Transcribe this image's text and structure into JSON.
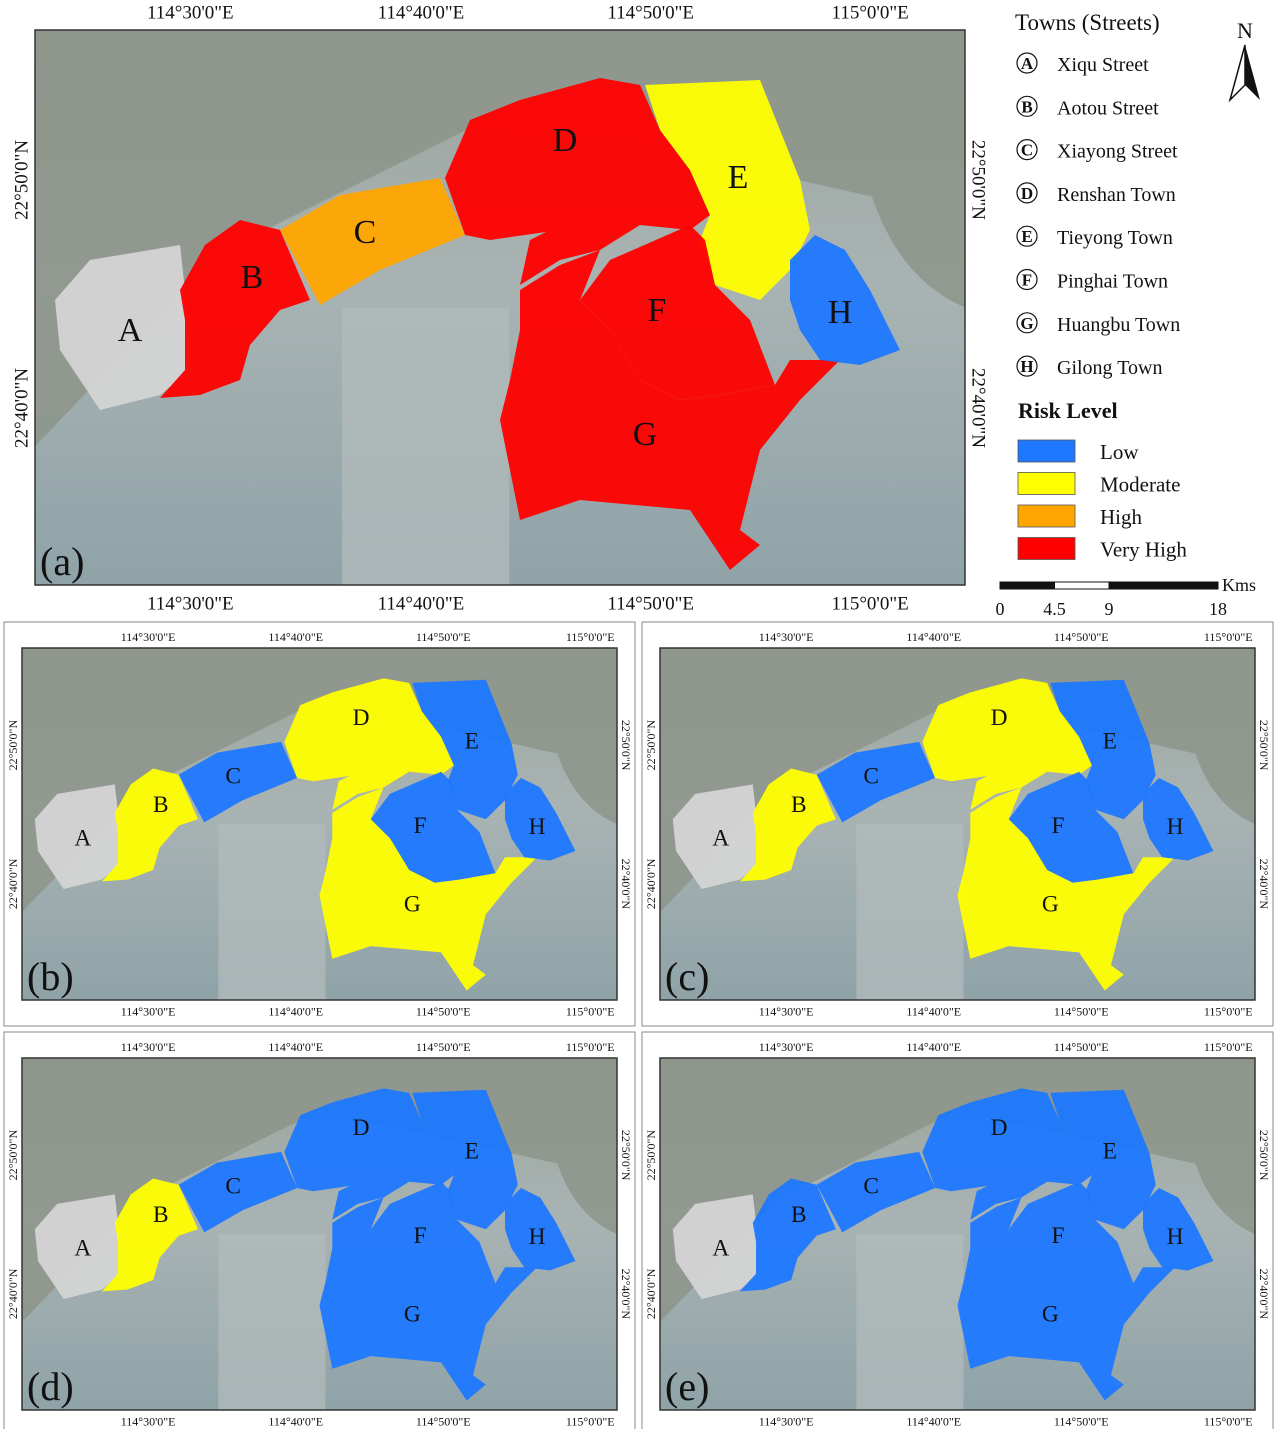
{
  "panels": [
    {
      "label": "(a)",
      "xlabels": [
        "114°30'0\"E",
        "114°40'0\"E",
        "114°50'0\"E",
        "115°0'0\"E"
      ],
      "ylabels": [
        "22°50'0\"N",
        "22°40'0\"N"
      ],
      "regions": [
        {
          "label": "A",
          "color": "#d4d4d4"
        },
        {
          "label": "B",
          "color": "#ff0000"
        },
        {
          "label": "C",
          "color": "#ffa500"
        },
        {
          "label": "D",
          "color": "#ff0000"
        },
        {
          "label": "E",
          "color": "#ffff00"
        },
        {
          "label": "F",
          "color": "#ff0000"
        },
        {
          "label": "G",
          "color": "#ff0000"
        },
        {
          "label": "H",
          "color": "#1e78ff"
        }
      ]
    },
    {
      "label": "(b)",
      "xlabels": [
        "114°30'0\"E",
        "114°40'0\"E",
        "114°50'0\"E",
        "115°0'0\"E"
      ],
      "ylabels": [
        "22°50'0\"N",
        "22°40'0\"N"
      ],
      "regions": [
        {
          "label": "A",
          "color": "#d4d4d4"
        },
        {
          "label": "B",
          "color": "#ffff00"
        },
        {
          "label": "C",
          "color": "#1e78ff"
        },
        {
          "label": "D",
          "color": "#ffff00"
        },
        {
          "label": "E",
          "color": "#1e78ff"
        },
        {
          "label": "F",
          "color": "#1e78ff"
        },
        {
          "label": "G",
          "color": "#ffff00"
        },
        {
          "label": "H",
          "color": "#1e78ff"
        }
      ]
    },
    {
      "label": "(c)",
      "xlabels": [
        "114°30'0\"E",
        "114°40'0\"E",
        "114°50'0\"E",
        "115°0'0\"E"
      ],
      "ylabels": [
        "22°50'0\"N",
        "22°40'0\"N"
      ],
      "regions": [
        {
          "label": "A",
          "color": "#d4d4d4"
        },
        {
          "label": "B",
          "color": "#ffff00"
        },
        {
          "label": "C",
          "color": "#1e78ff"
        },
        {
          "label": "D",
          "color": "#ffff00"
        },
        {
          "label": "E",
          "color": "#1e78ff"
        },
        {
          "label": "F",
          "color": "#1e78ff"
        },
        {
          "label": "G",
          "color": "#ffff00"
        },
        {
          "label": "H",
          "color": "#1e78ff"
        }
      ]
    },
    {
      "label": "(d)",
      "xlabels": [
        "114°30'0\"E",
        "114°40'0\"E",
        "114°50'0\"E",
        "115°0'0\"E"
      ],
      "ylabels": [
        "22°50'0\"N",
        "22°40'0\"N"
      ],
      "regions": [
        {
          "label": "A",
          "color": "#d4d4d4"
        },
        {
          "label": "B",
          "color": "#ffff00"
        },
        {
          "label": "C",
          "color": "#1e78ff"
        },
        {
          "label": "D",
          "color": "#1e78ff"
        },
        {
          "label": "E",
          "color": "#1e78ff"
        },
        {
          "label": "F",
          "color": "#1e78ff"
        },
        {
          "label": "G",
          "color": "#1e78ff"
        },
        {
          "label": "H",
          "color": "#1e78ff"
        }
      ]
    },
    {
      "label": "(e)",
      "xlabels": [
        "114°30'0\"E",
        "114°40'0\"E",
        "114°50'0\"E",
        "115°0'0\"E"
      ],
      "ylabels": [
        "22°50'0\"N",
        "22°40'0\"N"
      ],
      "regions": [
        {
          "label": "A",
          "color": "#d4d4d4"
        },
        {
          "label": "B",
          "color": "#1e78ff"
        },
        {
          "label": "C",
          "color": "#1e78ff"
        },
        {
          "label": "D",
          "color": "#1e78ff"
        },
        {
          "label": "E",
          "color": "#1e78ff"
        },
        {
          "label": "F",
          "color": "#1e78ff"
        },
        {
          "label": "G",
          "color": "#1e78ff"
        },
        {
          "label": "H",
          "color": "#1e78ff"
        }
      ]
    }
  ],
  "legend": {
    "towns_title": "Towns (Streets)",
    "towns": [
      {
        "letter": "A",
        "name": "Xiqu Street"
      },
      {
        "letter": "B",
        "name": "Aotou Street"
      },
      {
        "letter": "C",
        "name": "Xiayong Street"
      },
      {
        "letter": "D",
        "name": "Renshan Town"
      },
      {
        "letter": "E",
        "name": "Tieyong Town"
      },
      {
        "letter": "F",
        "name": "Pinghai Town"
      },
      {
        "letter": "G",
        "name": "Huangbu Town"
      },
      {
        "letter": "H",
        "name": "Gilong Town"
      }
    ],
    "risk_title": "Risk Level",
    "risk_levels": [
      {
        "name": "Low",
        "color": "#1e78ff"
      },
      {
        "name": "Moderate",
        "color": "#ffff00"
      },
      {
        "name": "High",
        "color": "#ffa500"
      },
      {
        "name": "Very High",
        "color": "#ff0000"
      }
    ]
  },
  "north": "N",
  "scale": {
    "unit": "Kms",
    "ticks": [
      0,
      4.5,
      9,
      18
    ]
  }
}
